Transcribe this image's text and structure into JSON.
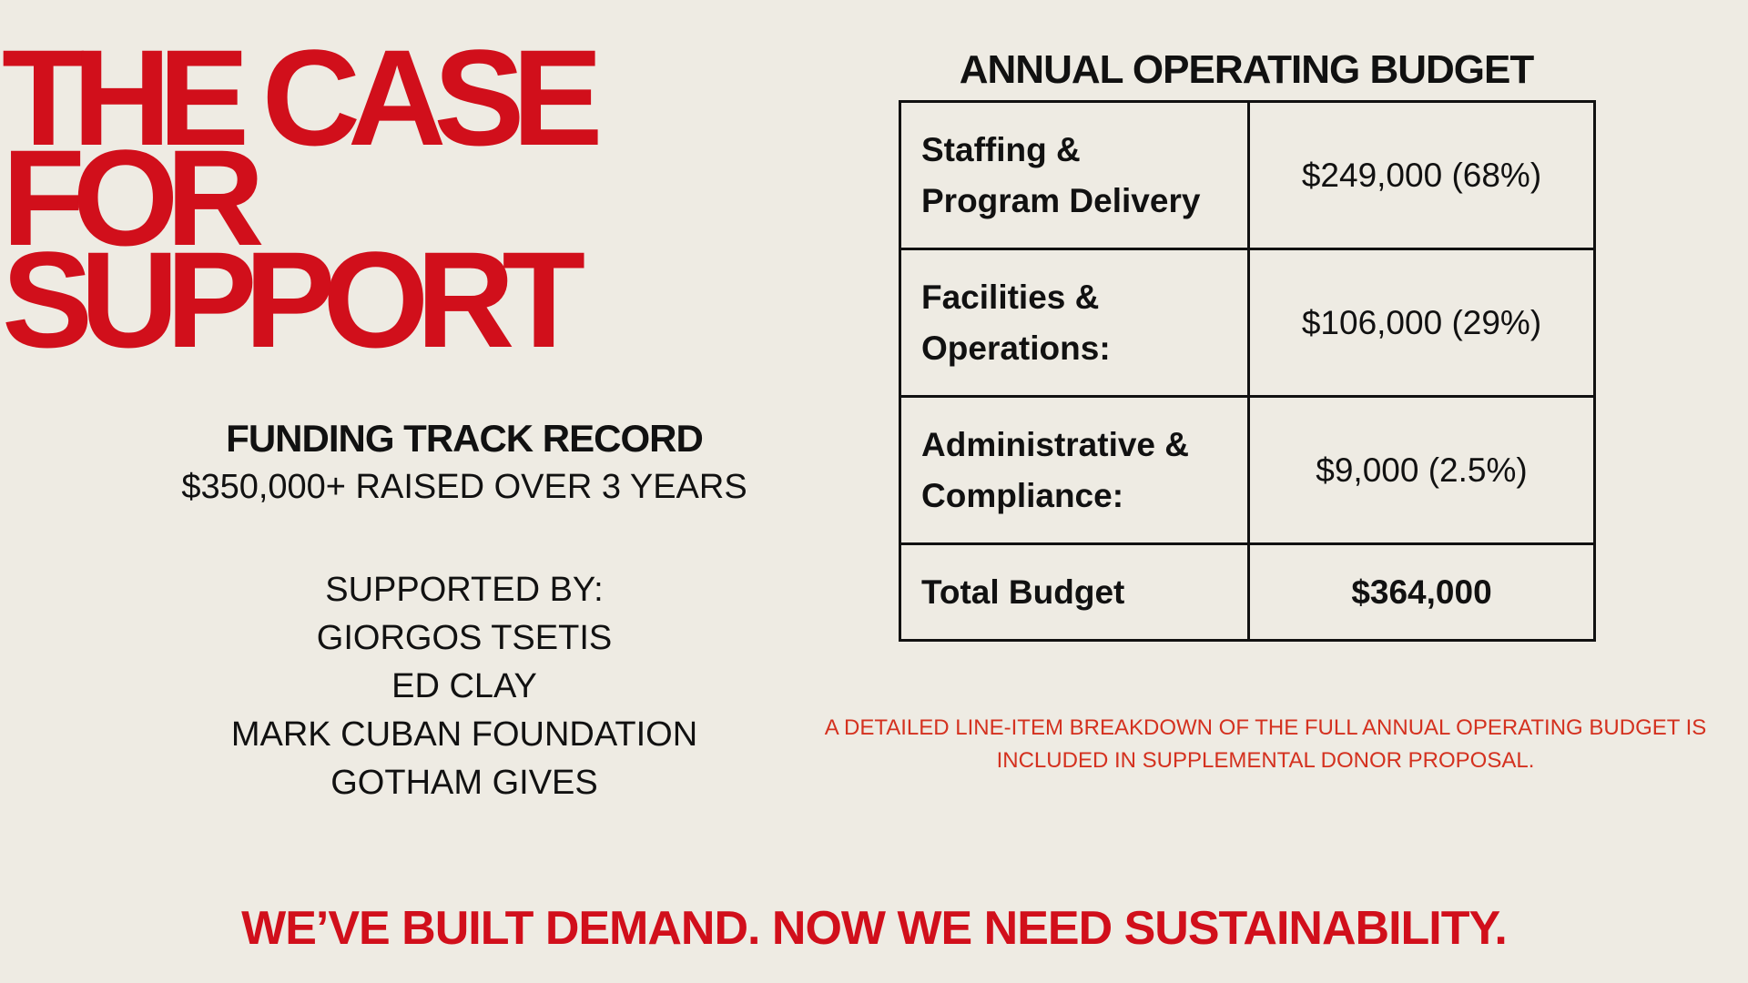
{
  "header": {
    "title_lines": [
      "THE CASE",
      "FOR",
      "SUPPORT"
    ]
  },
  "funding": {
    "heading": "FUNDING TRACK RECORD",
    "summary": "$350,000+ RAISED OVER 3 YEARS",
    "supporters_heading": "SUPPORTED BY:",
    "supporters": [
      "GIORGOS TSETIS",
      "ED CLAY",
      "MARK CUBAN FOUNDATION",
      "GOTHAM GIVES"
    ]
  },
  "budget": {
    "title": "ANNUAL OPERATING BUDGET",
    "table": {
      "rows": [
        [
          "Staffing & Program Delivery",
          "$249,000 (68%)"
        ],
        [
          "Facilities & Operations:",
          "$106,000 (29%)"
        ],
        [
          "Administrative & Compliance:",
          "$9,000 (2.5%)"
        ],
        [
          "Total Budget",
          "$364,000"
        ]
      ]
    },
    "note": "A DETAILED LINE-ITEM BREAKDOWN OF THE FULL ANNUAL OPERATING BUDGET IS INCLUDED IN SUPPLEMENTAL DONOR PROPOSAL."
  },
  "footer": {
    "tagline": "WE’VE BUILT DEMAND. NOW WE NEED SUSTAINABILITY."
  }
}
